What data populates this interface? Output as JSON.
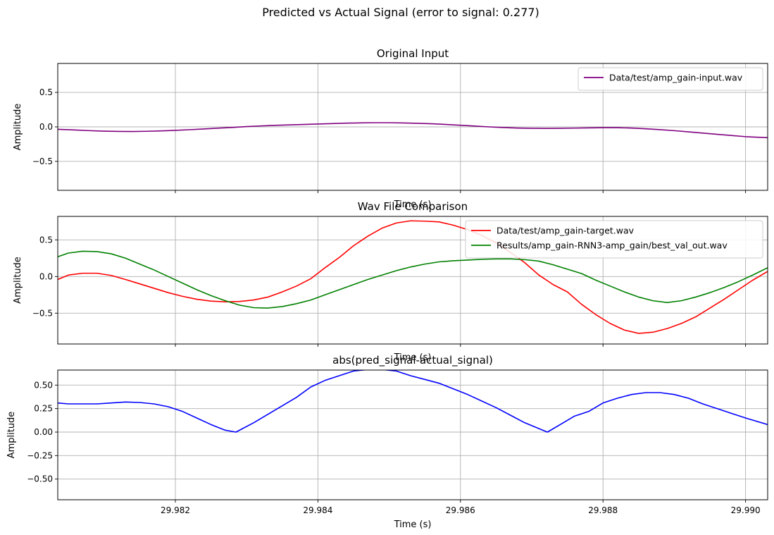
{
  "figure": {
    "suptitle": "Predicted vs Actual Signal (error to signal: 0.277)"
  },
  "chart_data": [
    {
      "type": "line",
      "title": "Original Input",
      "xlabel": "Time (s)",
      "ylabel": "Amplitude",
      "xlim": [
        29.98035,
        29.99031
      ],
      "ylim": [
        -0.92,
        0.92
      ],
      "yticks": [
        0.5,
        0.0,
        -0.5
      ],
      "ytick_labels": [
        "0.5",
        "0.0",
        "−0.5"
      ],
      "xticks": [
        29.982,
        29.984,
        29.986,
        29.988,
        29.99
      ],
      "xtick_labels": [],
      "grid": true,
      "legend_position": "upper-right",
      "series": [
        {
          "name": "Data/test/amp_gain-input.wav",
          "color": "#800080",
          "x": [
            29.98035,
            29.9806,
            29.9808,
            29.981,
            29.9812,
            29.9814,
            29.9816,
            29.9818,
            29.982,
            29.9822,
            29.9824,
            29.9826,
            29.9828,
            29.983,
            29.9832,
            29.9834,
            29.9836,
            29.9838,
            29.984,
            29.9842,
            29.9844,
            29.9846,
            29.9848,
            29.985,
            29.9852,
            29.9854,
            29.9856,
            29.9858,
            29.986,
            29.9862,
            29.9864,
            29.9866,
            29.9868,
            29.987,
            29.9872,
            29.9874,
            29.9876,
            29.9878,
            29.988,
            29.9882,
            29.9884,
            29.9886,
            29.9888,
            29.989,
            29.9892,
            29.9894,
            29.9896,
            29.9898,
            29.99,
            29.99031
          ],
          "y": [
            -0.035,
            -0.045,
            -0.055,
            -0.062,
            -0.066,
            -0.067,
            -0.064,
            -0.058,
            -0.05,
            -0.041,
            -0.03,
            -0.019,
            -0.008,
            0.004,
            0.014,
            0.022,
            0.029,
            0.035,
            0.042,
            0.048,
            0.054,
            0.058,
            0.06,
            0.06,
            0.057,
            0.052,
            0.045,
            0.035,
            0.024,
            0.012,
            0.0,
            -0.01,
            -0.017,
            -0.021,
            -0.022,
            -0.021,
            -0.018,
            -0.015,
            -0.012,
            -0.012,
            -0.017,
            -0.027,
            -0.04,
            -0.055,
            -0.072,
            -0.09,
            -0.108,
            -0.125,
            -0.142,
            -0.157
          ]
        }
      ]
    },
    {
      "type": "line",
      "title": "Wav File Comparison",
      "xlabel": "Time (s)",
      "ylabel": "Amplitude",
      "xlim": [
        29.98035,
        29.99031
      ],
      "ylim": [
        -0.92,
        0.82
      ],
      "yticks": [
        0.5,
        0.0,
        -0.5
      ],
      "ytick_labels": [
        "0.5",
        "0.0",
        "−0.5"
      ],
      "xticks": [
        29.982,
        29.984,
        29.986,
        29.988,
        29.99
      ],
      "xtick_labels": [],
      "grid": true,
      "legend_position": "upper-right",
      "series": [
        {
          "name": "Data/test/amp_gain-target.wav",
          "color": "#ff0000",
          "x": [
            29.98035,
            29.9805,
            29.9807,
            29.9809,
            29.9811,
            29.9813,
            29.9815,
            29.9817,
            29.9819,
            29.9821,
            29.9823,
            29.9825,
            29.9827,
            29.9829,
            29.9831,
            29.9833,
            29.9835,
            29.9837,
            29.9839,
            29.9841,
            29.9843,
            29.9845,
            29.9847,
            29.9849,
            29.9851,
            29.9853,
            29.9855,
            29.9857,
            29.9859,
            29.9861,
            29.9863,
            29.9865,
            29.9867,
            29.9869,
            29.9871,
            29.9873,
            29.9875,
            29.9877,
            29.9879,
            29.9881,
            29.9883,
            29.9885,
            29.9887,
            29.9889,
            29.9891,
            29.9893,
            29.9895,
            29.9897,
            29.9899,
            29.9901,
            29.99031
          ],
          "y": [
            -0.04,
            0.02,
            0.045,
            0.045,
            0.015,
            -0.04,
            -0.1,
            -0.16,
            -0.22,
            -0.27,
            -0.31,
            -0.335,
            -0.345,
            -0.34,
            -0.32,
            -0.28,
            -0.21,
            -0.13,
            -0.03,
            0.12,
            0.26,
            0.42,
            0.55,
            0.66,
            0.73,
            0.76,
            0.755,
            0.745,
            0.7,
            0.64,
            0.56,
            0.46,
            0.33,
            0.19,
            0.02,
            -0.11,
            -0.21,
            -0.38,
            -0.52,
            -0.64,
            -0.73,
            -0.775,
            -0.76,
            -0.71,
            -0.64,
            -0.55,
            -0.43,
            -0.31,
            -0.18,
            -0.05,
            0.07
          ]
        },
        {
          "name": "Results/amp_gain-RNN3-amp_gain/best_val_out.wav",
          "color": "#008000",
          "x": [
            29.98035,
            29.9805,
            29.9807,
            29.9809,
            29.9811,
            29.9813,
            29.9815,
            29.9817,
            29.9819,
            29.9821,
            29.9823,
            29.9825,
            29.9827,
            29.9829,
            29.9831,
            29.9833,
            29.9835,
            29.9837,
            29.9839,
            29.9841,
            29.9843,
            29.9845,
            29.9847,
            29.9849,
            29.9851,
            29.9853,
            29.9855,
            29.9857,
            29.9859,
            29.9861,
            29.9863,
            29.9865,
            29.9867,
            29.9869,
            29.9871,
            29.9873,
            29.9875,
            29.9877,
            29.9879,
            29.9881,
            29.9883,
            29.9885,
            29.9887,
            29.9889,
            29.9891,
            29.9893,
            29.9895,
            29.9897,
            29.9899,
            29.9901,
            29.99031
          ],
          "y": [
            0.27,
            0.32,
            0.345,
            0.34,
            0.31,
            0.25,
            0.17,
            0.09,
            0.0,
            -0.09,
            -0.18,
            -0.26,
            -0.33,
            -0.39,
            -0.425,
            -0.43,
            -0.41,
            -0.37,
            -0.32,
            -0.25,
            -0.18,
            -0.11,
            -0.04,
            0.02,
            0.08,
            0.13,
            0.17,
            0.2,
            0.215,
            0.225,
            0.235,
            0.24,
            0.24,
            0.23,
            0.21,
            0.16,
            0.1,
            0.04,
            -0.05,
            -0.13,
            -0.21,
            -0.28,
            -0.33,
            -0.355,
            -0.33,
            -0.28,
            -0.22,
            -0.15,
            -0.07,
            0.02,
            0.12
          ]
        }
      ]
    },
    {
      "type": "line",
      "title": "abs(pred_signal-actual_signal)",
      "xlabel": "Time (s)",
      "ylabel": "Amplitude",
      "xlim": [
        29.98035,
        29.99031
      ],
      "ylim": [
        -0.72,
        0.66
      ],
      "yticks": [
        0.5,
        0.25,
        0.0,
        -0.25,
        -0.5
      ],
      "ytick_labels": [
        "0.50",
        "0.25",
        "0.00",
        "−0.25",
        "−0.50"
      ],
      "xticks": [
        29.982,
        29.984,
        29.986,
        29.988,
        29.99
      ],
      "xtick_labels": [
        "29.982",
        "29.984",
        "29.986",
        "29.988",
        "29.990"
      ],
      "grid": true,
      "series": [
        {
          "color": "#0000ff",
          "x": [
            29.98035,
            29.9805,
            29.9807,
            29.9809,
            29.9811,
            29.9813,
            29.9815,
            29.9817,
            29.9819,
            29.9821,
            29.9823,
            29.9825,
            29.9827,
            29.98285,
            29.9831,
            29.9833,
            29.9835,
            29.9837,
            29.9839,
            29.9841,
            29.9843,
            29.9845,
            29.9847,
            29.9849,
            29.9851,
            29.9853,
            29.9855,
            29.9857,
            29.9859,
            29.9861,
            29.9863,
            29.9865,
            29.9867,
            29.9869,
            29.98722,
            29.9874,
            29.9876,
            29.9878,
            29.988,
            29.9882,
            29.9884,
            29.9886,
            29.9888,
            29.989,
            29.9892,
            29.9894,
            29.9896,
            29.9898,
            29.99,
            29.99031
          ],
          "y": [
            0.31,
            0.3,
            0.3,
            0.3,
            0.31,
            0.32,
            0.315,
            0.3,
            0.27,
            0.22,
            0.15,
            0.08,
            0.02,
            0.0,
            0.1,
            0.19,
            0.28,
            0.37,
            0.48,
            0.55,
            0.6,
            0.65,
            0.665,
            0.665,
            0.65,
            0.6,
            0.56,
            0.52,
            0.46,
            0.4,
            0.33,
            0.26,
            0.18,
            0.1,
            0.0,
            0.08,
            0.17,
            0.22,
            0.31,
            0.36,
            0.4,
            0.42,
            0.42,
            0.4,
            0.36,
            0.3,
            0.25,
            0.2,
            0.15,
            0.08
          ]
        }
      ]
    }
  ]
}
